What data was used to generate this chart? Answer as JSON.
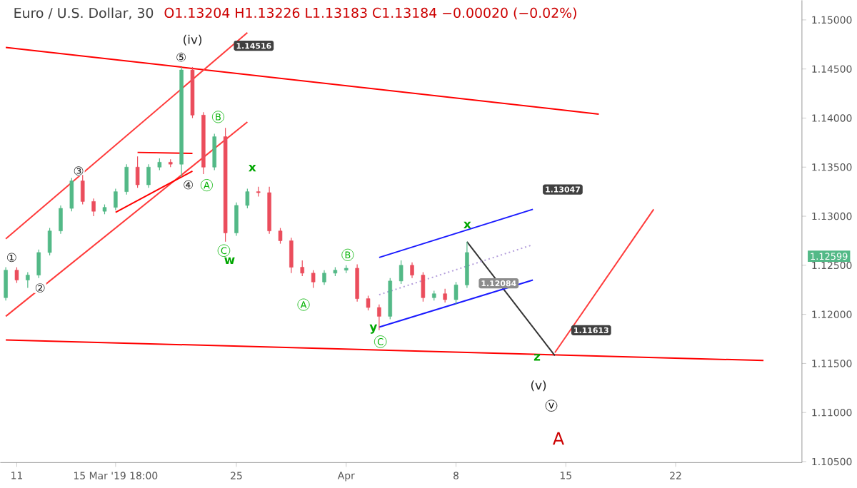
{
  "chart_data": {
    "type": "candlestick",
    "title": "Euro / U.S. Dollar, 30",
    "subtitle": "O1.13204 H1.13226 L1.13183 C1.13184 −0.00020 (−0.02%)",
    "categories": [
      null,
      "11",
      null,
      null,
      null,
      null,
      null,
      null,
      null,
      null,
      "15 Mar '19 18:00",
      null,
      null,
      null,
      null,
      null,
      null,
      null,
      null,
      null,
      null,
      "25",
      null,
      null,
      null,
      null,
      null,
      null,
      null,
      null,
      null,
      "Apr",
      null,
      null,
      null,
      null,
      null,
      null,
      null,
      null,
      null,
      "8",
      null,
      null,
      null,
      null,
      null,
      null,
      null,
      null,
      null,
      "15",
      null,
      null,
      null,
      null,
      null,
      null,
      null,
      null,
      null,
      "22",
      null,
      null,
      null,
      null,
      null,
      null,
      null,
      null,
      null,
      null,
      null
    ],
    "ohlc": [
      [
        1.1217,
        1.1248,
        1.1214,
        1.1245
      ],
      [
        1.1245,
        1.1248,
        1.1232,
        1.1235
      ],
      [
        1.1235,
        1.1243,
        1.1227,
        1.124
      ],
      [
        1.124,
        1.1266,
        1.1237,
        1.1263
      ],
      [
        1.1263,
        1.1288,
        1.126,
        1.1285
      ],
      [
        1.1285,
        1.1311,
        1.1282,
        1.1308
      ],
      [
        1.1308,
        1.1339,
        1.1305,
        1.1336
      ],
      [
        1.1336,
        1.1342,
        1.1312,
        1.1315
      ],
      [
        1.1315,
        1.1318,
        1.13,
        1.1305
      ],
      [
        1.1305,
        1.1312,
        1.1302,
        1.1309
      ],
      [
        1.1309,
        1.1328,
        1.1306,
        1.1325
      ],
      [
        1.1325,
        1.1353,
        1.1322,
        1.135
      ],
      [
        1.135,
        1.1361,
        1.1329,
        1.1332
      ],
      [
        1.1332,
        1.1353,
        1.1329,
        1.135
      ],
      [
        1.135,
        1.1359,
        1.1347,
        1.1355
      ],
      [
        1.1355,
        1.1358,
        1.135,
        1.1353
      ],
      [
        1.1353,
        1.1452,
        1.134,
        1.1449
      ],
      [
        1.1449,
        1.1452,
        1.14,
        1.1403
      ],
      [
        1.1403,
        1.1406,
        1.1343,
        1.135
      ],
      [
        1.135,
        1.1384,
        1.1347,
        1.1381
      ],
      [
        1.1381,
        1.139,
        1.1274,
        1.1283
      ],
      [
        1.1283,
        1.1314,
        1.128,
        1.1311
      ],
      [
        1.1311,
        1.1328,
        1.1308,
        1.1325
      ],
      [
        1.1325,
        1.133,
        1.132,
        1.1324
      ],
      [
        1.1324,
        1.133,
        1.1282,
        1.1285
      ],
      [
        1.1285,
        1.1288,
        1.1272,
        1.1275
      ],
      [
        1.1275,
        1.1278,
        1.1242,
        1.1248
      ],
      [
        1.1248,
        1.1255,
        1.1239,
        1.1242
      ],
      [
        1.1242,
        1.1245,
        1.1227,
        1.1233
      ],
      [
        1.1233,
        1.1245,
        1.123,
        1.1242
      ],
      [
        1.1242,
        1.1248,
        1.1239,
        1.1245
      ],
      [
        1.1245,
        1.125,
        1.1242,
        1.1247
      ],
      [
        1.1247,
        1.1251,
        1.1213,
        1.1216
      ],
      [
        1.1216,
        1.1219,
        1.1204,
        1.1207
      ],
      [
        1.1207,
        1.121,
        1.1184,
        1.1198
      ],
      [
        1.1198,
        1.1237,
        1.1195,
        1.1234
      ],
      [
        1.1234,
        1.1255,
        1.1231,
        1.125
      ],
      [
        1.125,
        1.1253,
        1.1237,
        1.124
      ],
      [
        1.124,
        1.1243,
        1.1213,
        1.1217
      ],
      [
        1.1217,
        1.1224,
        1.1214,
        1.1221
      ],
      [
        1.1221,
        1.1226,
        1.1212,
        1.1215
      ],
      [
        1.1215,
        1.1233,
        1.121,
        1.123
      ],
      [
        1.123,
        1.1274,
        1.1227,
        1.1263
      ],
      null,
      null,
      null,
      null,
      null,
      null,
      null,
      null,
      null,
      null,
      null,
      null,
      null,
      null,
      null,
      null,
      null,
      null,
      null,
      null,
      null,
      null,
      null,
      null,
      null,
      null,
      null,
      null,
      null,
      null
    ],
    "colors": [
      "#53b987",
      "#eb4d5c",
      "#53b987",
      "#53b987",
      "#53b987",
      "#53b987",
      "#53b987",
      "#eb4d5c",
      "#eb4d5c",
      "#53b987",
      "#53b987",
      "#53b987",
      "#eb4d5c",
      "#53b987",
      "#53b987",
      "#eb4d5c",
      "#53b987",
      "#eb4d5c",
      "#eb4d5c",
      "#53b987",
      "#eb4d5c",
      "#53b987",
      "#53b987",
      "#eb4d5c",
      "#eb4d5c",
      "#eb4d5c",
      "#eb4d5c",
      "#eb4d5c",
      "#eb4d5c",
      "#53b987",
      "#53b987",
      "#53b987",
      "#eb4d5c",
      "#eb4d5c",
      "#eb4d5c",
      "#53b987",
      "#53b987",
      "#eb4d5c",
      "#eb4d5c",
      "#53b987",
      "#eb4d5c",
      "#53b987",
      "#53b987",
      null,
      null,
      null,
      null,
      null,
      null,
      null,
      null,
      null,
      null,
      null,
      null,
      null,
      null,
      null,
      null,
      null,
      null,
      null,
      null,
      null,
      null,
      null,
      null,
      null,
      null,
      null,
      null,
      null,
      null
    ],
    "series": [
      {
        "type": "line",
        "color": "#ff0000",
        "values": [
          1.1472,
          null,
          null,
          null,
          null,
          null,
          null,
          null,
          null,
          null,
          null,
          null,
          null,
          null,
          null,
          null,
          null,
          null,
          null,
          null,
          null,
          null,
          null,
          null,
          null,
          null,
          null,
          null,
          null,
          null,
          null,
          null,
          null,
          null,
          null,
          null,
          null,
          null,
          null,
          null,
          null,
          null,
          null,
          null,
          null,
          null,
          null,
          null,
          null,
          null,
          null,
          null,
          null,
          null,
          1.1404,
          null,
          null,
          null,
          null,
          null,
          null,
          null,
          null,
          null,
          null,
          null,
          null,
          null,
          null,
          null,
          null,
          null,
          null
        ]
      },
      {
        "type": "line",
        "color": "#ff0000",
        "values": [
          1.1174,
          null,
          null,
          null,
          null,
          null,
          null,
          null,
          null,
          null,
          null,
          null,
          null,
          null,
          null,
          null,
          null,
          null,
          null,
          null,
          null,
          null,
          null,
          null,
          null,
          null,
          null,
          null,
          null,
          null,
          null,
          null,
          null,
          null,
          null,
          null,
          null,
          null,
          null,
          null,
          null,
          null,
          null,
          null,
          null,
          null,
          null,
          null,
          null,
          null,
          null,
          null,
          null,
          null,
          null,
          null,
          null,
          null,
          null,
          null,
          null,
          null,
          null,
          null,
          null,
          null,
          null,
          null,
          null,
          1.1153,
          null,
          null,
          null
        ]
      },
      {
        "type": "line",
        "color": "#ff3b3b",
        "values": [
          1.1277,
          null,
          null,
          null,
          null,
          null,
          null,
          null,
          null,
          null,
          null,
          null,
          null,
          null,
          null,
          null,
          null,
          null,
          null,
          null,
          null,
          null,
          1.1487,
          null,
          null,
          null,
          null,
          null,
          null,
          null,
          null,
          null,
          null,
          null,
          null,
          null,
          null,
          null,
          null,
          null,
          null,
          null,
          null,
          null,
          null,
          null,
          null,
          null,
          null,
          null,
          null,
          null,
          null,
          null,
          null,
          null,
          null,
          null,
          null,
          null,
          null,
          null,
          null,
          null,
          null,
          null,
          null,
          null,
          null,
          null,
          null,
          null,
          null
        ]
      },
      {
        "type": "line",
        "color": "#ff3b3b",
        "values": [
          1.1198,
          null,
          null,
          null,
          null,
          null,
          null,
          null,
          null,
          null,
          null,
          null,
          null,
          null,
          null,
          null,
          null,
          null,
          null,
          null,
          null,
          null,
          1.1396,
          null,
          null,
          null,
          null,
          null,
          null,
          null,
          null,
          null,
          null,
          null,
          null,
          null,
          null,
          null,
          null,
          null,
          null,
          null,
          null,
          null,
          null,
          null,
          null,
          null,
          null,
          null,
          null,
          null,
          null,
          null,
          null,
          null,
          null,
          null,
          null,
          null,
          null,
          null,
          null,
          null,
          null,
          null,
          null,
          null,
          null,
          null,
          null,
          null,
          null
        ]
      },
      {
        "type": "line",
        "color": "#ff0000",
        "values": [
          null,
          null,
          null,
          null,
          null,
          null,
          null,
          null,
          null,
          null,
          null,
          null,
          1.1365,
          null,
          null,
          null,
          null,
          1.1364,
          null,
          null,
          null,
          null,
          null,
          null,
          null,
          null,
          null,
          null,
          null,
          null,
          null,
          null,
          null,
          null,
          null,
          null,
          null,
          null,
          null,
          null,
          null,
          null,
          null,
          null,
          null,
          null,
          null,
          null,
          null,
          null,
          null,
          null,
          null,
          null,
          null,
          null,
          null,
          null,
          null,
          null,
          null,
          null,
          null,
          null,
          null,
          null,
          null,
          null,
          null,
          null,
          null,
          null,
          null
        ]
      },
      {
        "type": "line",
        "color": "#ff0000",
        "values": [
          null,
          null,
          null,
          null,
          null,
          null,
          null,
          null,
          null,
          null,
          1.1304,
          null,
          null,
          null,
          null,
          null,
          null,
          1.1346,
          null,
          null,
          null,
          null,
          null,
          null,
          null,
          null,
          null,
          null,
          null,
          null,
          null,
          null,
          null,
          null,
          null,
          null,
          null,
          null,
          null,
          null,
          null,
          null,
          null,
          null,
          null,
          null,
          null,
          null,
          null,
          null,
          null,
          null,
          null,
          null,
          null,
          null,
          null,
          null,
          null,
          null,
          null,
          null,
          null,
          null,
          null,
          null,
          null,
          null,
          null,
          null,
          null,
          null,
          null
        ]
      },
      {
        "type": "line",
        "color": "#ff3b3b",
        "values": [
          null,
          null,
          null,
          null,
          null,
          null,
          null,
          null,
          null,
          null,
          null,
          null,
          null,
          null,
          null,
          null,
          null,
          null,
          null,
          null,
          null,
          null,
          null,
          null,
          null,
          null,
          null,
          null,
          null,
          null,
          null,
          null,
          null,
          null,
          null,
          null,
          null,
          null,
          null,
          null,
          null,
          null,
          null,
          null,
          null,
          null,
          null,
          null,
          null,
          null,
          1.1161,
          null,
          null,
          null,
          null,
          null,
          null,
          null,
          null,
          1.1307,
          null,
          null,
          null,
          null,
          null,
          null,
          null,
          null,
          null,
          null,
          null,
          null,
          null
        ]
      },
      {
        "type": "line",
        "color": "#333333",
        "values": [
          null,
          null,
          null,
          null,
          null,
          null,
          null,
          null,
          null,
          null,
          null,
          null,
          null,
          null,
          null,
          null,
          null,
          null,
          null,
          null,
          null,
          null,
          null,
          null,
          null,
          null,
          null,
          null,
          null,
          null,
          null,
          null,
          null,
          null,
          null,
          null,
          null,
          null,
          null,
          null,
          null,
          null,
          1.1274,
          null,
          null,
          null,
          null,
          null,
          null,
          null,
          1.1158,
          null,
          null,
          null,
          null,
          null,
          null,
          null,
          null,
          null,
          null,
          null,
          null,
          null,
          null,
          null,
          null,
          null,
          null,
          null,
          null,
          null,
          null
        ]
      },
      {
        "type": "line",
        "color": "#1a1aff",
        "values": [
          null,
          null,
          null,
          null,
          null,
          null,
          null,
          null,
          null,
          null,
          null,
          null,
          null,
          null,
          null,
          null,
          null,
          null,
          null,
          null,
          null,
          null,
          null,
          null,
          null,
          null,
          null,
          null,
          null,
          null,
          null,
          null,
          null,
          null,
          1.1258,
          null,
          null,
          null,
          null,
          null,
          null,
          null,
          null,
          null,
          null,
          null,
          null,
          null,
          1.1307,
          null,
          null,
          null,
          null,
          null,
          null,
          null,
          null,
          null,
          null,
          null,
          null,
          null,
          null,
          null,
          null,
          null,
          null,
          null,
          null,
          null,
          null,
          null,
          null
        ]
      },
      {
        "type": "line",
        "color": "#1a1aff",
        "values": [
          null,
          null,
          null,
          null,
          null,
          null,
          null,
          null,
          null,
          null,
          null,
          null,
          null,
          null,
          null,
          null,
          null,
          null,
          null,
          null,
          null,
          null,
          null,
          null,
          null,
          null,
          null,
          null,
          null,
          null,
          null,
          null,
          null,
          null,
          1.1187,
          null,
          null,
          null,
          null,
          null,
          null,
          null,
          null,
          null,
          null,
          null,
          null,
          null,
          1.1235,
          null,
          null,
          null,
          null,
          null,
          null,
          null,
          null,
          null,
          null,
          null,
          null,
          null,
          null,
          null,
          null,
          null,
          null,
          null,
          null,
          null,
          null,
          null,
          null
        ]
      },
      {
        "type": "line",
        "color": "#b39ddb",
        "line_style": "dotted",
        "values": [
          null,
          null,
          null,
          null,
          null,
          null,
          null,
          null,
          null,
          null,
          null,
          null,
          null,
          null,
          null,
          null,
          null,
          null,
          null,
          null,
          null,
          null,
          null,
          null,
          null,
          null,
          null,
          null,
          null,
          null,
          null,
          null,
          null,
          null,
          1.122,
          null,
          null,
          null,
          null,
          null,
          null,
          null,
          null,
          null,
          null,
          null,
          null,
          null,
          1.1271,
          null,
          null,
          null,
          null,
          null,
          null,
          null,
          null,
          null,
          null,
          null,
          null,
          null,
          null,
          null,
          null,
          null,
          null,
          null,
          null,
          null,
          null,
          null,
          null
        ]
      }
    ],
    "annotations": [
      "(iv)",
      "⑤",
      "③",
      {
        "text": "④",
        "y": 1.1332
      },
      {
        "text": "①",
        "y": 1.1258
      },
      {
        "text": "②",
        "y": 1.1227
      },
      "A",
      "B",
      "C",
      "w",
      "x",
      "A",
      "B",
      {
        "text": "y",
        "y": 1.1185
      },
      "C",
      "x",
      "z",
      "(v)",
      "v",
      "A",
      "1.14516",
      "1.13047",
      "1.12084",
      "1.11613",
      "1.12599"
    ],
    "ylim": [
      1.1049,
      1.152
    ],
    "yticks": [
      {
        "value": 1.105,
        "label": "1.10500"
      },
      {
        "value": 1.11,
        "label": "1.11000"
      },
      {
        "value": 1.115,
        "label": "1.11500"
      },
      {
        "value": 1.12,
        "label": "1.12000"
      },
      {
        "value": 1.125,
        "label": "1.12500"
      },
      {
        "value": 1.13,
        "label": "1.13000"
      },
      {
        "value": 1.135,
        "label": "1.13500"
      },
      {
        "value": 1.14,
        "label": "1.14000"
      },
      {
        "value": 1.145,
        "label": "1.14500"
      },
      {
        "value": 1.15,
        "label": "1.15000"
      }
    ]
  }
}
